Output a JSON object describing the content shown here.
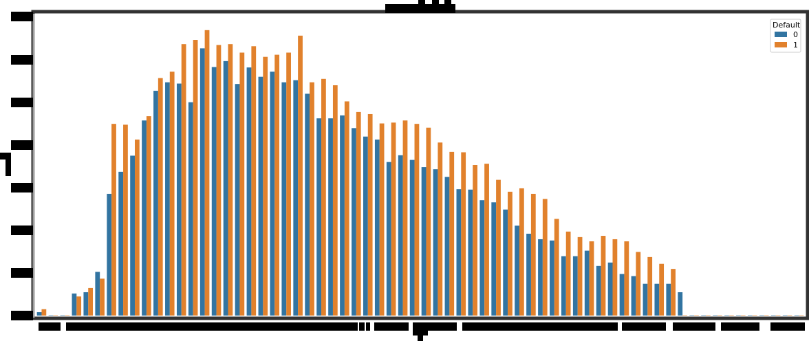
{
  "chart_data": {
    "type": "bar",
    "title": "",
    "xlabel": "",
    "ylabel": "",
    "ylim": [
      0,
      7.1
    ],
    "grid": false,
    "legend": {
      "title": "Default",
      "placement": "top-right"
    },
    "categories": [
      "c1",
      "c2",
      "c3",
      "c4",
      "c5",
      "c6",
      "c7",
      "c8",
      "c9",
      "c10",
      "c11",
      "c12",
      "c13",
      "c14",
      "c15",
      "c16",
      "c17",
      "c18",
      "c19",
      "c20",
      "c21",
      "c22",
      "c23",
      "c24",
      "c25",
      "c26",
      "c27",
      "c28",
      "c29",
      "c30",
      "c31",
      "c32",
      "c33",
      "c34",
      "c35",
      "c36",
      "c37",
      "c38",
      "c39",
      "c40",
      "c41",
      "c42",
      "c43",
      "c44",
      "c45",
      "c46",
      "c47",
      "c48",
      "c49",
      "c50",
      "c51",
      "c52",
      "c53",
      "c54",
      "c55",
      "c56",
      "c57",
      "c58",
      "c59",
      "c60",
      "c61",
      "c62",
      "c63",
      "c64",
      "c65",
      "c66"
    ],
    "series": [
      {
        "name": "0",
        "color": "#3274a1",
        "values": [
          0.08,
          0,
          0,
          0.52,
          0.55,
          1.03,
          2.87,
          3.39,
          3.77,
          4.6,
          5.3,
          5.5,
          5.47,
          5.03,
          6.3,
          5.86,
          6.0,
          5.46,
          5.85,
          5.63,
          5.75,
          5.5,
          5.55,
          5.23,
          4.65,
          4.65,
          4.72,
          4.42,
          4.22,
          4.15,
          3.62,
          3.78,
          3.67,
          3.5,
          3.45,
          3.27,
          2.98,
          2.97,
          2.72,
          2.67,
          2.5,
          2.12,
          1.93,
          1.8,
          1.77,
          1.4,
          1.4,
          1.53,
          1.17,
          1.25,
          0.98,
          0.93,
          0.75,
          0.75,
          0.75,
          0.55,
          0,
          0,
          0,
          0,
          0,
          0,
          0,
          0,
          0,
          0
        ]
      },
      {
        "name": "1",
        "color": "#e1812c",
        "values": [
          0.15,
          0,
          0,
          0.45,
          0.65,
          0.87,
          4.52,
          4.5,
          4.15,
          4.7,
          5.6,
          5.75,
          6.4,
          6.5,
          6.73,
          6.38,
          6.4,
          6.2,
          6.35,
          6.1,
          6.15,
          6.2,
          6.6,
          5.5,
          5.58,
          5.43,
          5.05,
          4.8,
          4.75,
          4.53,
          4.55,
          4.6,
          4.52,
          4.43,
          4.08,
          3.86,
          3.85,
          3.55,
          3.58,
          3.2,
          2.92,
          3.0,
          2.87,
          2.75,
          2.28,
          1.98,
          1.85,
          1.75,
          1.88,
          1.8,
          1.75,
          1.5,
          1.38,
          1.22,
          1.1,
          0,
          0,
          0,
          0,
          0,
          0,
          0,
          0,
          0,
          0,
          0
        ]
      }
    ]
  }
}
